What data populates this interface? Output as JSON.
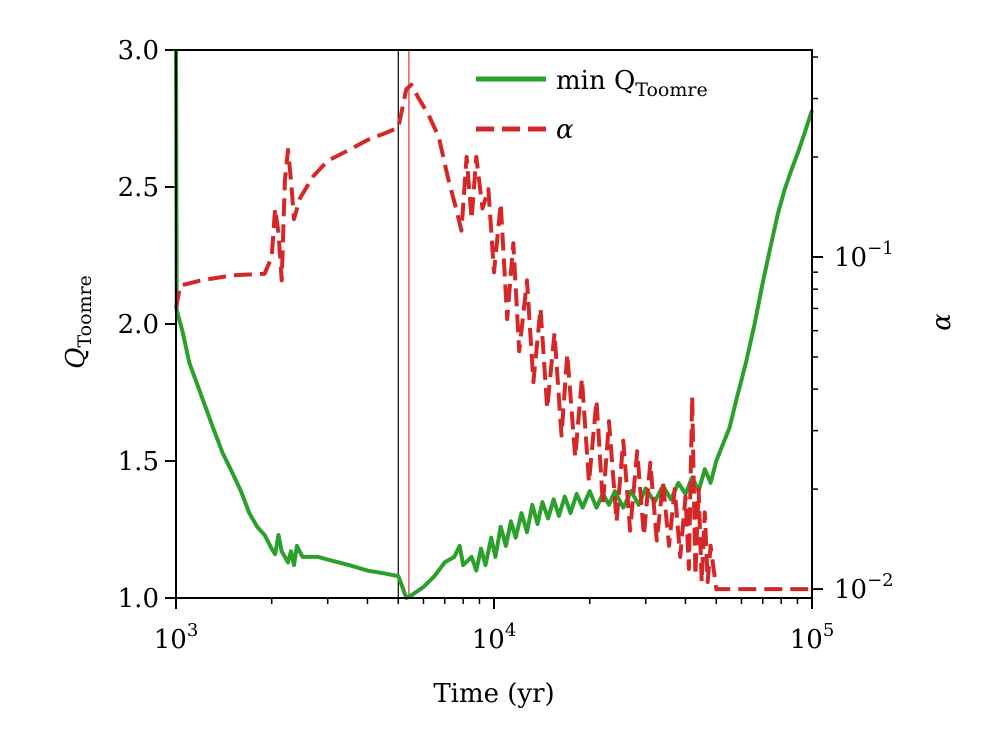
{
  "chart_data": {
    "type": "line",
    "title": "",
    "xlabel": "Time (yr)",
    "x_scale": "log",
    "xlim": [
      1000,
      100000
    ],
    "x_ticks": [
      {
        "value": 1000,
        "base": "10",
        "exp": "3"
      },
      {
        "value": 10000,
        "base": "10",
        "exp": "4"
      },
      {
        "value": 100000,
        "base": "10",
        "exp": "5"
      }
    ],
    "ylabel_left": {
      "main": "Q",
      "sub": "Toomre"
    },
    "ylim_left": [
      1.0,
      3.0
    ],
    "y_ticks_left": [
      "1.0",
      "1.5",
      "2.0",
      "2.5",
      "3.0"
    ],
    "ylabel_right": "α",
    "y_scale_right": "log",
    "ylim_right": [
      0.0094,
      0.42
    ],
    "y_ticks_right": [
      {
        "value": 0.01,
        "base": "10",
        "exp": "−2"
      },
      {
        "value": 0.1,
        "base": "10",
        "exp": "−1"
      }
    ],
    "vlines": [
      {
        "x": 5000,
        "color": "#000000"
      },
      {
        "x": 5400,
        "color": "#e03030"
      }
    ],
    "series": [
      {
        "name": "min Q_Toomre",
        "legend_main": "min Q",
        "legend_sub": "Toomre",
        "axis": "left",
        "color": "#2ca02c",
        "style": "solid",
        "points": [
          [
            1000,
            3.0
          ],
          [
            1005,
            2.05
          ],
          [
            1050,
            1.97
          ],
          [
            1100,
            1.86
          ],
          [
            1200,
            1.74
          ],
          [
            1300,
            1.63
          ],
          [
            1400,
            1.53
          ],
          [
            1500,
            1.46
          ],
          [
            1600,
            1.39
          ],
          [
            1700,
            1.31
          ],
          [
            1800,
            1.26
          ],
          [
            1900,
            1.23
          ],
          [
            2000,
            1.18
          ],
          [
            2050,
            1.16
          ],
          [
            2100,
            1.23
          ],
          [
            2150,
            1.17
          ],
          [
            2200,
            1.15
          ],
          [
            2250,
            1.13
          ],
          [
            2300,
            1.17
          ],
          [
            2350,
            1.12
          ],
          [
            2400,
            1.19
          ],
          [
            2500,
            1.15
          ],
          [
            2800,
            1.15
          ],
          [
            3000,
            1.14
          ],
          [
            3500,
            1.12
          ],
          [
            4000,
            1.1
          ],
          [
            4500,
            1.09
          ],
          [
            5000,
            1.08
          ],
          [
            5150,
            1.04
          ],
          [
            5300,
            1.0
          ],
          [
            5500,
            1.01
          ],
          [
            6000,
            1.04
          ],
          [
            6500,
            1.08
          ],
          [
            7000,
            1.13
          ],
          [
            7500,
            1.15
          ],
          [
            7800,
            1.19
          ],
          [
            8000,
            1.12
          ],
          [
            8500,
            1.15
          ],
          [
            8800,
            1.1
          ],
          [
            9100,
            1.18
          ],
          [
            9400,
            1.12
          ],
          [
            9800,
            1.22
          ],
          [
            10100,
            1.15
          ],
          [
            10500,
            1.26
          ],
          [
            10900,
            1.19
          ],
          [
            11300,
            1.28
          ],
          [
            11700,
            1.22
          ],
          [
            12200,
            1.31
          ],
          [
            12700,
            1.24
          ],
          [
            13200,
            1.34
          ],
          [
            13700,
            1.27
          ],
          [
            14200,
            1.35
          ],
          [
            14800,
            1.29
          ],
          [
            15400,
            1.36
          ],
          [
            16000,
            1.3
          ],
          [
            16700,
            1.37
          ],
          [
            17400,
            1.31
          ],
          [
            18200,
            1.38
          ],
          [
            19000,
            1.33
          ],
          [
            20000,
            1.39
          ],
          [
            21000,
            1.33
          ],
          [
            22000,
            1.38
          ],
          [
            23000,
            1.34
          ],
          [
            24000,
            1.39
          ],
          [
            25500,
            1.33
          ],
          [
            27000,
            1.39
          ],
          [
            28500,
            1.34
          ],
          [
            30000,
            1.4
          ],
          [
            32000,
            1.35
          ],
          [
            34000,
            1.41
          ],
          [
            36000,
            1.36
          ],
          [
            38000,
            1.42
          ],
          [
            40000,
            1.38
          ],
          [
            42000,
            1.44
          ],
          [
            44000,
            1.39
          ],
          [
            46000,
            1.47
          ],
          [
            48000,
            1.42
          ],
          [
            50000,
            1.5
          ],
          [
            52000,
            1.55
          ],
          [
            55000,
            1.62
          ],
          [
            58000,
            1.73
          ],
          [
            62000,
            1.86
          ],
          [
            66000,
            2.0
          ],
          [
            70000,
            2.15
          ],
          [
            74000,
            2.28
          ],
          [
            78000,
            2.4
          ],
          [
            82000,
            2.49
          ],
          [
            86000,
            2.56
          ],
          [
            90000,
            2.62
          ],
          [
            95000,
            2.7
          ],
          [
            100000,
            2.78
          ]
        ]
      },
      {
        "name": "α",
        "legend_main": "α",
        "legend_sub": "",
        "axis": "right",
        "color": "#d62728",
        "style": "dashed",
        "points": [
          [
            1000,
            0.07
          ],
          [
            1030,
            0.082
          ],
          [
            1200,
            0.085
          ],
          [
            1500,
            0.088
          ],
          [
            1900,
            0.089
          ],
          [
            2000,
            0.1
          ],
          [
            2050,
            0.14
          ],
          [
            2100,
            0.118
          ],
          [
            2150,
            0.085
          ],
          [
            2200,
            0.17
          ],
          [
            2250,
            0.21
          ],
          [
            2300,
            0.17
          ],
          [
            2350,
            0.13
          ],
          [
            2450,
            0.15
          ],
          [
            2700,
            0.175
          ],
          [
            3000,
            0.195
          ],
          [
            3500,
            0.21
          ],
          [
            4000,
            0.225
          ],
          [
            4500,
            0.235
          ],
          [
            5000,
            0.245
          ],
          [
            5300,
            0.32
          ],
          [
            5500,
            0.33
          ],
          [
            5800,
            0.3
          ],
          [
            6200,
            0.27
          ],
          [
            6700,
            0.23
          ],
          [
            7200,
            0.17
          ],
          [
            7600,
            0.14
          ],
          [
            7900,
            0.12
          ],
          [
            8200,
            0.2
          ],
          [
            8500,
            0.13
          ],
          [
            8800,
            0.2
          ],
          [
            9200,
            0.14
          ],
          [
            9600,
            0.16
          ],
          [
            10000,
            0.09
          ],
          [
            10500,
            0.145
          ],
          [
            11000,
            0.065
          ],
          [
            11500,
            0.11
          ],
          [
            12000,
            0.052
          ],
          [
            12700,
            0.085
          ],
          [
            13300,
            0.042
          ],
          [
            14000,
            0.07
          ],
          [
            14700,
            0.035
          ],
          [
            15500,
            0.059
          ],
          [
            16300,
            0.029
          ],
          [
            17000,
            0.051
          ],
          [
            18000,
            0.025
          ],
          [
            18900,
            0.043
          ],
          [
            19900,
            0.021
          ],
          [
            21000,
            0.037
          ],
          [
            22000,
            0.018
          ],
          [
            23000,
            0.032
          ],
          [
            24300,
            0.016
          ],
          [
            25500,
            0.028
          ],
          [
            26800,
            0.015
          ],
          [
            28200,
            0.026
          ],
          [
            29600,
            0.0145
          ],
          [
            31000,
            0.024
          ],
          [
            32500,
            0.014
          ],
          [
            34000,
            0.021
          ],
          [
            35500,
            0.0135
          ],
          [
            37000,
            0.02
          ],
          [
            38500,
            0.0125
          ],
          [
            40000,
            0.019
          ],
          [
            41000,
            0.0115
          ],
          [
            42000,
            0.038
          ],
          [
            43000,
            0.011
          ],
          [
            44000,
            0.02
          ],
          [
            45000,
            0.0105
          ],
          [
            46000,
            0.017
          ],
          [
            47000,
            0.0105
          ],
          [
            48000,
            0.0135
          ],
          [
            50000,
            0.01
          ],
          [
            100000,
            0.01
          ]
        ]
      }
    ]
  }
}
